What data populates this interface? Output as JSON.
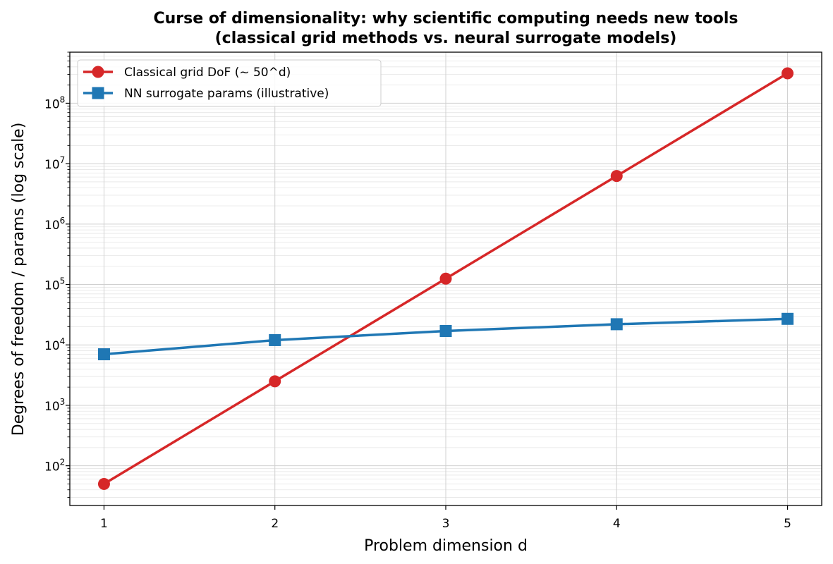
{
  "chart_data": {
    "type": "line",
    "title": "Curse of dimensionality: why scientific computing needs new tools",
    "subtitle": "(classical grid methods vs. neural surrogate models)",
    "xlabel": "Problem dimension d",
    "ylabel": "Degrees of freedom / params (log scale)",
    "x": [
      1,
      2,
      3,
      4,
      5
    ],
    "x_ticks": [
      "1",
      "2",
      "3",
      "4",
      "5"
    ],
    "xlim": [
      0.8,
      5.2
    ],
    "yscale": "log",
    "ylim": [
      22,
      700000000
    ],
    "y_ticks": [
      {
        "exp": 2,
        "label": "10",
        "sup": "2"
      },
      {
        "exp": 3,
        "label": "10",
        "sup": "3"
      },
      {
        "exp": 4,
        "label": "10",
        "sup": "4"
      },
      {
        "exp": 5,
        "label": "10",
        "sup": "5"
      },
      {
        "exp": 6,
        "label": "10",
        "sup": "6"
      },
      {
        "exp": 7,
        "label": "10",
        "sup": "7"
      },
      {
        "exp": 8,
        "label": "10",
        "sup": "8"
      }
    ],
    "grid": true,
    "legend_position": "top-left",
    "series": [
      {
        "name": "Classical grid DoF (~ 50^d)",
        "values": [
          50,
          2500,
          125000,
          6250000,
          312500000
        ],
        "color": "#d62728",
        "marker": "circle"
      },
      {
        "name": "NN surrogate params (illustrative)",
        "values": [
          7000,
          12000,
          17000,
          22000,
          27000
        ],
        "color": "#1f77b4",
        "marker": "square"
      }
    ]
  }
}
